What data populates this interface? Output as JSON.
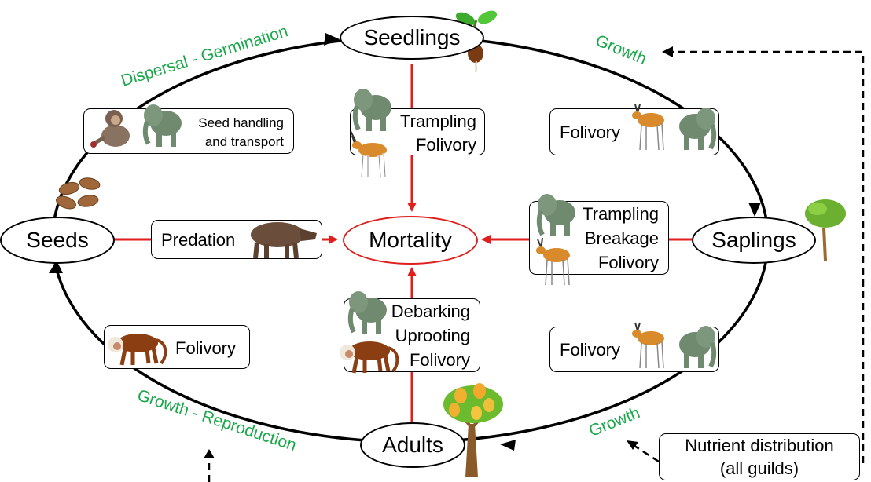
{
  "nodes": {
    "seedlings": "Seedlings",
    "seeds": "Seeds",
    "saplings": "Saplings",
    "adults": "Adults",
    "mortality": "Mortality"
  },
  "transitions": {
    "dispersal_germination": "Dispersal - Germination",
    "growth_top": "Growth",
    "growth_bottom": "Growth",
    "growth_reproduction": "Growth - Reproduction"
  },
  "boxes": {
    "seed_handling": [
      "Seed handling",
      "and transport"
    ],
    "seedling_threats": [
      "Trampling",
      "Folivory"
    ],
    "folivory_top_right": "Folivory",
    "predation": "Predation",
    "sapling_threats": [
      "Trampling",
      "Breakage",
      "Folivory"
    ],
    "folivory_left": "Folivory",
    "adult_threats": [
      "Debarking",
      "Uprooting",
      "Folivory"
    ],
    "folivory_bottom_right": "Folivory",
    "nutrient": [
      "Nutrient distribution",
      "(all guilds)"
    ]
  },
  "icons": [
    "elephant-icon",
    "antelope-icon",
    "monkey-icon",
    "chimpanzee-icon",
    "boar-icon",
    "seedling-icon",
    "sapling-tree-icon",
    "fruit-tree-icon",
    "seeds-icon"
  ],
  "colors": {
    "mortality_arrows": "#e01e1e",
    "transition_labels": "#1aa84a",
    "cycle": "#000000"
  }
}
